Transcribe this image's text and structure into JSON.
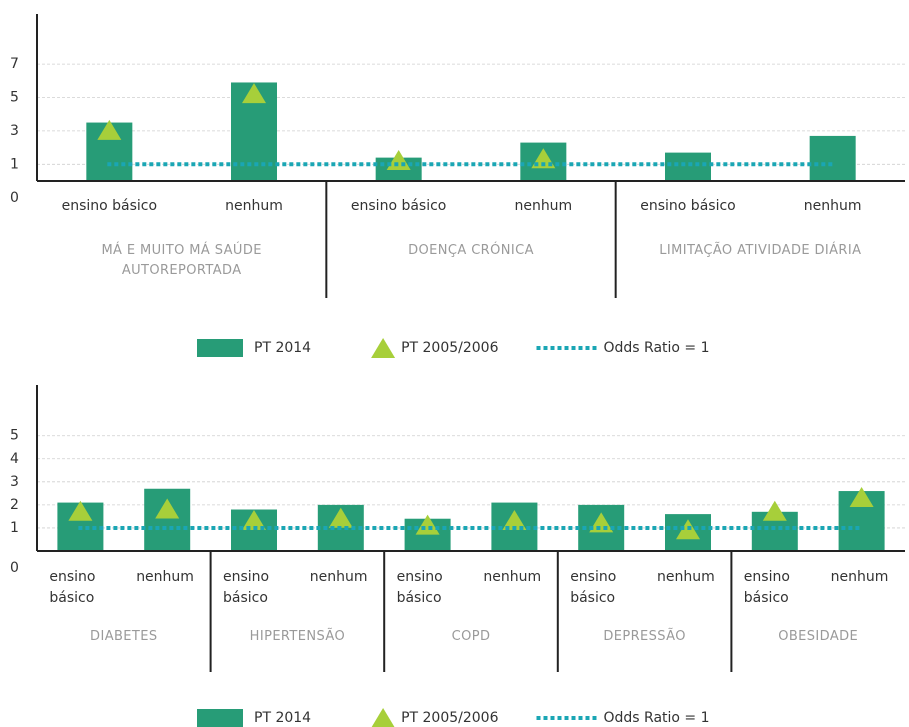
{
  "chart_data": [
    {
      "type": "bar",
      "categories": [
        "ensino básico",
        "nenhum",
        "ensino básico",
        "nenhum",
        "ensino básico",
        "nenhum"
      ],
      "groups": [
        "MÁ E MUITO MÁ SAÚDE AUTOREPORTADA",
        "DOENÇA CRÓNICA",
        "LIMITAÇÃO ATIVIDADE DIÁRIA"
      ],
      "series": [
        {
          "name": "PT 2014",
          "color": "#279c77",
          "marker": "bar",
          "values": [
            3.5,
            5.9,
            1.4,
            2.3,
            1.7,
            2.7
          ]
        },
        {
          "name": "PT 2005/2006",
          "color": "#a7cf3a",
          "marker": "triangle",
          "values": [
            3.0,
            5.2,
            1.2,
            1.3,
            null,
            null
          ]
        }
      ],
      "reference_line": {
        "name": "Odds Ratio = 1",
        "value": 1,
        "color": "#1aa6b4"
      },
      "ylim": [
        0,
        10
      ],
      "yticks": [
        0,
        1,
        3,
        5,
        7
      ],
      "grid": true
    },
    {
      "type": "bar",
      "categories": [
        "ensino básico",
        "nenhum",
        "ensino básico",
        "nenhum",
        "ensino básico",
        "nenhum",
        "ensino básico",
        "nenhum",
        "ensino básico",
        "nenhum"
      ],
      "groups": [
        "DIABETES",
        "HIPERTENSÃO",
        "COPD",
        "DEPRESSÃO",
        "OBESIDADE"
      ],
      "series": [
        {
          "name": "PT 2014",
          "color": "#279c77",
          "marker": "bar",
          "values": [
            2.1,
            2.7,
            1.8,
            2.0,
            1.4,
            2.1,
            2.0,
            1.6,
            1.7,
            2.6
          ]
        },
        {
          "name": "PT 2005/2006",
          "color": "#a7cf3a",
          "marker": "triangle",
          "values": [
            1.7,
            1.8,
            1.3,
            1.4,
            1.1,
            1.3,
            1.2,
            0.9,
            1.7,
            2.3
          ]
        }
      ],
      "reference_line": {
        "name": "Odds Ratio = 1",
        "value": 1,
        "color": "#1aa6b4"
      },
      "ylim": [
        0,
        7.2
      ],
      "yticks": [
        0,
        1,
        2,
        3,
        4,
        5
      ],
      "grid": true
    }
  ]
}
